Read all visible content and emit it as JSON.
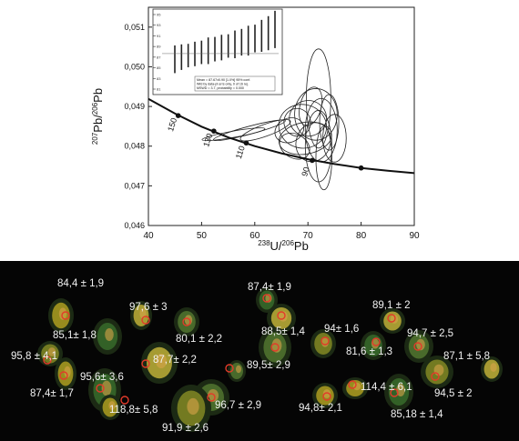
{
  "chart_data": [
    {
      "type": "scatter",
      "subtype": "concordia-tera-wasserburg",
      "title": "",
      "xlabel_mass": "238",
      "xlabel_rest": "U/",
      "xlabel_mass2": "206",
      "xlabel_tail": "Pb",
      "ylabel_mass": "207",
      "ylabel_rest": "Pb/",
      "ylabel_mass2": "206",
      "ylabel_tail": "Pb",
      "xlim": [
        40,
        90
      ],
      "ylim": [
        0.046,
        0.0515
      ],
      "x_ticks": [
        "40",
        "50",
        "60",
        "70",
        "80",
        "90"
      ],
      "y_ticks": [
        "0,046",
        "0,047",
        "0,048",
        "0,049",
        "0,050",
        "0,051"
      ],
      "concordia": {
        "x": [
          40,
          45,
          50,
          55,
          60,
          65,
          70,
          75,
          80,
          85,
          90
        ],
        "y": [
          0.04919,
          0.04882,
          0.04849,
          0.04822,
          0.048,
          0.04782,
          0.04767,
          0.04755,
          0.04745,
          0.04738,
          0.04732
        ],
        "age_markers": [
          {
            "label": "150",
            "x": 45.6,
            "y": 0.04877
          },
          {
            "label": "130",
            "x": 52.3,
            "y": 0.04838
          },
          {
            "label": "110",
            "x": 58.4,
            "y": 0.04808
          },
          {
            "label": "90",
            "x": 70.8,
            "y": 0.04764
          },
          {
            "label": "",
            "x": 80.0,
            "y": 0.04745
          }
        ]
      },
      "ellipses": [
        {
          "cx": 72.0,
          "cy": 0.0492,
          "rx": 2.3,
          "ry": 0.00125,
          "angle": 0
        },
        {
          "cx": 71.5,
          "cy": 0.0488,
          "rx": 4.0,
          "ry": 0.00065,
          "angle": 0
        },
        {
          "cx": 70.0,
          "cy": 0.0487,
          "rx": 3.5,
          "ry": 0.00045,
          "angle": -5
        },
        {
          "cx": 69.0,
          "cy": 0.0485,
          "rx": 4.5,
          "ry": 0.00055,
          "angle": 10
        },
        {
          "cx": 72.5,
          "cy": 0.0484,
          "rx": 3.0,
          "ry": 0.0008,
          "angle": 0
        },
        {
          "cx": 68.0,
          "cy": 0.0486,
          "rx": 2.5,
          "ry": 0.00035,
          "angle": -15
        },
        {
          "cx": 74.0,
          "cy": 0.0486,
          "rx": 1.8,
          "ry": 0.0007,
          "angle": 0
        },
        {
          "cx": 71.0,
          "cy": 0.0481,
          "rx": 3.2,
          "ry": 0.0005,
          "angle": 20
        },
        {
          "cx": 66.5,
          "cy": 0.0484,
          "rx": 2.8,
          "ry": 0.0003,
          "angle": -25
        },
        {
          "cx": 73.0,
          "cy": 0.0477,
          "rx": 1.5,
          "ry": 0.0008,
          "angle": 0
        },
        {
          "cx": 69.5,
          "cy": 0.0482,
          "rx": 5.0,
          "ry": 0.0004,
          "angle": -10
        },
        {
          "cx": 70.5,
          "cy": 0.049,
          "rx": 2.0,
          "ry": 0.0005,
          "angle": 15
        },
        {
          "cx": 75.0,
          "cy": 0.0482,
          "rx": 2.2,
          "ry": 0.0006,
          "angle": 0
        },
        {
          "cx": 67.5,
          "cy": 0.048,
          "rx": 3.0,
          "ry": 0.0003,
          "angle": 30
        },
        {
          "cx": 62.0,
          "cy": 0.0484,
          "rx": 5.0,
          "ry": 0.00015,
          "angle": -20
        },
        {
          "cx": 59.0,
          "cy": 0.0484,
          "rx": 7.0,
          "ry": 0.0001,
          "angle": -15
        },
        {
          "cx": 56.0,
          "cy": 0.0483,
          "rx": 6.0,
          "ry": 8e-05,
          "angle": -10
        },
        {
          "cx": 72.0,
          "cy": 0.048,
          "rx": 2.5,
          "ry": 0.0009,
          "angle": 0
        }
      ],
      "inset": {
        "y_ticks": [
          "95",
          "93",
          "91",
          "89",
          "87",
          "85",
          "83",
          "81"
        ],
        "bars": [
          {
            "mid": 86.6,
            "half": 2.6
          },
          {
            "mid": 87.0,
            "half": 2.4
          },
          {
            "mid": 87.3,
            "half": 2.2
          },
          {
            "mid": 87.6,
            "half": 2.3
          },
          {
            "mid": 87.9,
            "half": 2.2
          },
          {
            "mid": 88.2,
            "half": 2.5
          },
          {
            "mid": 88.5,
            "half": 2.3
          },
          {
            "mid": 88.8,
            "half": 2.4
          },
          {
            "mid": 89.1,
            "half": 2.2
          },
          {
            "mid": 89.4,
            "half": 2.6
          },
          {
            "mid": 89.8,
            "half": 2.5
          },
          {
            "mid": 90.1,
            "half": 2.8
          },
          {
            "mid": 90.5,
            "half": 2.6
          },
          {
            "mid": 91.0,
            "half": 3.0
          },
          {
            "mid": 91.5,
            "half": 3.2
          },
          {
            "mid": 92.2,
            "half": 3.5
          }
        ],
        "stat_lines": [
          "Mean = 87.67±0.90  [1.0%]  95% conf.",
          "Wtd by data-pt errs only, 0 of 16 rej.",
          "MSWD = 3.7, probability = 0.000"
        ]
      }
    }
  ],
  "micrograph": {
    "spots": [
      {
        "label": "84,4 ± 1,9"
      },
      {
        "label": "97,6 ± 3"
      },
      {
        "label": "85,1± 1,8"
      },
      {
        "label": "80,1 ± 2,2"
      },
      {
        "label": "95,8 ± 4,1"
      },
      {
        "label": "87,4± 1,7"
      },
      {
        "label": "95,6± 3,6"
      },
      {
        "label": "87,7± 2,2"
      },
      {
        "label": "118,8± 5,8"
      },
      {
        "label": "96,7 ± 2,9"
      },
      {
        "label": "91,9 ± 2,6"
      },
      {
        "label": "87,4± 1,9"
      },
      {
        "label": "88,5± 1,4"
      },
      {
        "label": "89,5± 2,9"
      },
      {
        "label": "94± 1,6"
      },
      {
        "label": "89,1 ± 2"
      },
      {
        "label": "81,6 ± 1,3"
      },
      {
        "label": "94,7 ± 2,5"
      },
      {
        "label": "87,1 ± 5,8"
      },
      {
        "label": "94,5 ± 2"
      },
      {
        "label": "114,4 ± 6,1"
      },
      {
        "label": "94,8± 2,1"
      },
      {
        "label": "85,18 ± 1,4"
      }
    ]
  }
}
